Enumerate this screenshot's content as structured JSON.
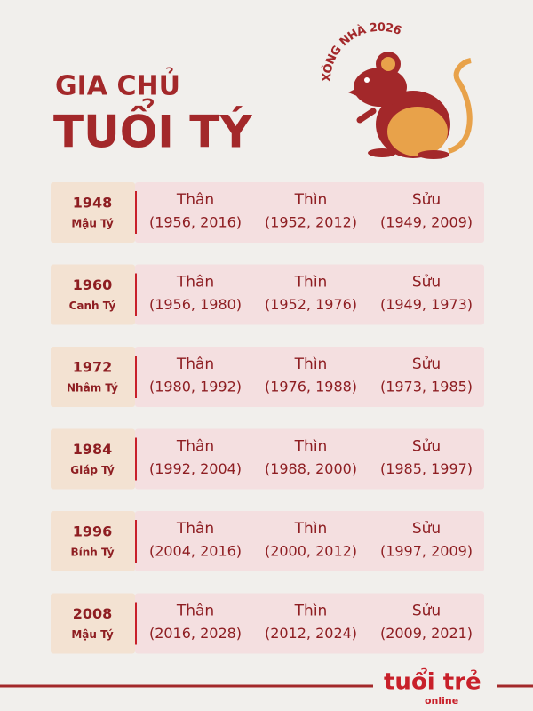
{
  "header": {
    "title_line1": "GIA CHỦ",
    "title_line2": "TUỔI TÝ",
    "badge": "XÔNG NHÀ 2026"
  },
  "table": {
    "rows": [
      {
        "year": "1948",
        "name": "Mậu Tý",
        "cells": [
          {
            "animal": "Thân",
            "years": "(1956, 2016)"
          },
          {
            "animal": "Thìn",
            "years": "(1952, 2012)"
          },
          {
            "animal": "Sửu",
            "years": "(1949, 2009)"
          }
        ]
      },
      {
        "year": "1960",
        "name": "Canh Tý",
        "cells": [
          {
            "animal": "Thân",
            "years": "(1956, 1980)"
          },
          {
            "animal": "Thìn",
            "years": "(1952, 1976)"
          },
          {
            "animal": "Sửu",
            "years": "(1949, 1973)"
          }
        ]
      },
      {
        "year": "1972",
        "name": "Nhâm Tý",
        "cells": [
          {
            "animal": "Thân",
            "years": "(1980, 1992)"
          },
          {
            "animal": "Thìn",
            "years": "(1976, 1988)"
          },
          {
            "animal": "Sửu",
            "years": "(1973, 1985)"
          }
        ]
      },
      {
        "year": "1984",
        "name": "Giáp Tý",
        "cells": [
          {
            "animal": "Thân",
            "years": "(1992, 2004)"
          },
          {
            "animal": "Thìn",
            "years": "(1988, 2000)"
          },
          {
            "animal": "Sửu",
            "years": "(1985, 1997)"
          }
        ]
      },
      {
        "year": "1996",
        "name": "Bính Tý",
        "cells": [
          {
            "animal": "Thân",
            "years": "(2004, 2016)"
          },
          {
            "animal": "Thìn",
            "years": "(2000, 2012)"
          },
          {
            "animal": "Sửu",
            "years": "(1997, 2009)"
          }
        ]
      },
      {
        "year": "2008",
        "name": "Mậu Tý",
        "cells": [
          {
            "animal": "Thân",
            "years": "(2016, 2028)"
          },
          {
            "animal": "Thìn",
            "years": "(2012, 2024)"
          },
          {
            "animal": "Sửu",
            "years": "(2009, 2021)"
          }
        ]
      }
    ]
  },
  "footer": {
    "logo_main": "tuổi trẻ",
    "logo_sub": "online"
  }
}
